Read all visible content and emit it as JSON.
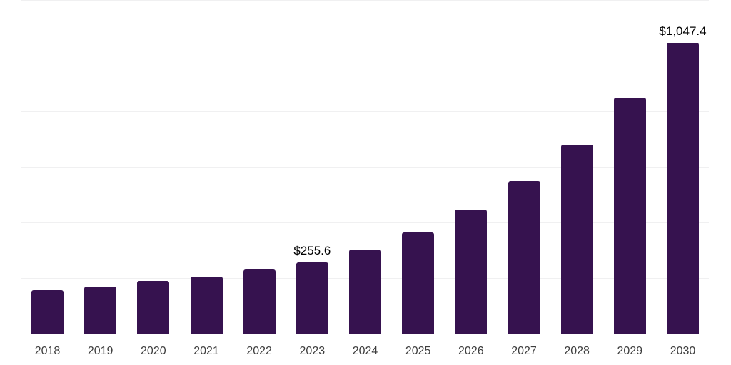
{
  "chart_data": {
    "type": "bar",
    "title": "",
    "xlabel": "",
    "ylabel": "",
    "categories": [
      "2018",
      "2019",
      "2020",
      "2021",
      "2022",
      "2023",
      "2024",
      "2025",
      "2026",
      "2027",
      "2028",
      "2029",
      "2030"
    ],
    "values": [
      156.1,
      168.9,
      189.4,
      204.8,
      230.4,
      255.6,
      302.1,
      363.5,
      445.4,
      547.8,
      678.4,
      849.9,
      1047.4
    ],
    "ylim": [
      0,
      1200
    ],
    "gridline_step": 200,
    "grid": "horizontal",
    "legend_position": "none",
    "y_axis_labels_visible": false,
    "annotations": [
      {
        "index": 5,
        "category": "2023",
        "text": "$255.6"
      },
      {
        "index": 12,
        "category": "2030",
        "text": "$1,047.4"
      }
    ]
  },
  "style": {
    "bar_color": "#36124F",
    "gridline_color": "#f0f0f1",
    "axis_color": "#262626",
    "tick_label_color": "#3d3d3d",
    "value_label_color": "#000000",
    "background": "#ffffff"
  }
}
